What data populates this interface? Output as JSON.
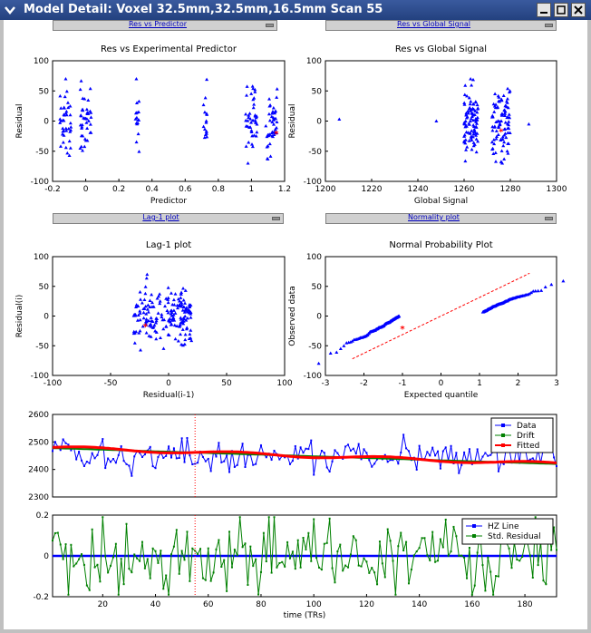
{
  "window": {
    "title": "Model Detail:  Voxel 32.5mm,32.5mm,16.5mm  Scan 55"
  },
  "popups": [
    {
      "id": "a",
      "label": "Res vs Predictor"
    },
    {
      "id": "b",
      "label": "Res vs Global Signal"
    },
    {
      "id": "c",
      "label": "Lag-1 plot"
    },
    {
      "id": "d",
      "label": "Normality plot"
    }
  ],
  "colors": {
    "data": "#0000ff",
    "fitted": "#ff0000",
    "drift": "#008000",
    "zero": "#0000ff",
    "cursor": "#ff0000"
  },
  "chart_data": [
    {
      "type": "scatter",
      "title": "Res vs Experimental Predictor",
      "xlabel": "Predictor",
      "ylabel": "Residual",
      "xlim": [
        -0.2,
        1.2
      ],
      "ylim": [
        -100,
        100
      ],
      "xticks": [
        "-0.2",
        "0",
        "0.2",
        "0.4",
        "0.6",
        "0.8",
        "1",
        "1.2"
      ],
      "yticks": [
        "100",
        "50",
        "0",
        "-50",
        "-100"
      ],
      "clusters": [
        {
          "x": -0.12,
          "spread": 0.035,
          "n": 40,
          "sd": 28
        },
        {
          "x": 0.0,
          "spread": 0.035,
          "n": 42,
          "sd": 30
        },
        {
          "x": 0.31,
          "spread": 0.012,
          "n": 16,
          "sd": 26
        },
        {
          "x": 0.72,
          "spread": 0.012,
          "n": 16,
          "sd": 28
        },
        {
          "x": 1.0,
          "spread": 0.035,
          "n": 44,
          "sd": 28
        },
        {
          "x": 1.12,
          "spread": 0.035,
          "n": 44,
          "sd": 26
        }
      ],
      "highlight": {
        "x": 1.15,
        "y": -22
      }
    },
    {
      "type": "scatter",
      "title": "Res vs Global Signal",
      "xlabel": "Global Signal",
      "ylabel": "Residual",
      "xlim": [
        1200,
        1300
      ],
      "ylim": [
        -100,
        100
      ],
      "xticks": [
        "1200",
        "1220",
        "1240",
        "1260",
        "1280",
        "1300"
      ],
      "yticks": [
        "100",
        "50",
        "0",
        "-50",
        "-100"
      ],
      "clusters": [
        {
          "x": 1263,
          "spread": 3,
          "n": 95,
          "sd": 28
        },
        {
          "x": 1276,
          "spread": 4,
          "n": 95,
          "sd": 28
        }
      ],
      "outliers": [
        {
          "x": 1206,
          "y": 3
        },
        {
          "x": 1248,
          "y": 0
        },
        {
          "x": 1288,
          "y": -5
        }
      ],
      "highlight": {
        "x": 1276,
        "y": -18
      }
    },
    {
      "type": "scatter",
      "title": "Lag-1 plot",
      "xlabel": "Residual(i-1)",
      "ylabel": "Residual(i)",
      "xlim": [
        -100,
        100
      ],
      "ylim": [
        -100,
        100
      ],
      "xticks": [
        "-100",
        "-50",
        "0",
        "50",
        "100"
      ],
      "yticks": [
        "100",
        "50",
        "0",
        "-50",
        "-100"
      ],
      "clusters": [
        {
          "x": -5,
          "spread": 25,
          "n": 190,
          "sd": 24
        }
      ],
      "highlight": {
        "x": -20,
        "y": -18
      }
    },
    {
      "type": "scatter",
      "title": "Normal Probability Plot",
      "xlabel": "Expected quantile",
      "ylabel": "Observed data",
      "xlim": [
        -3,
        3
      ],
      "ylim": [
        -100,
        100
      ],
      "xticks": [
        "-3",
        "-2",
        "-1",
        "0",
        "1",
        "2",
        "3"
      ],
      "yticks": [
        "100",
        "50",
        "0",
        "-50",
        "-100"
      ],
      "qq": {
        "n": 192,
        "slope": 26
      },
      "refline": {
        "x": [
          -2.3,
          2.3
        ],
        "y": [
          -72,
          72
        ]
      },
      "highlight": {
        "x": -1.0,
        "y": -22
      }
    },
    {
      "type": "line",
      "xlim": [
        1,
        192
      ],
      "ylim": [
        2300,
        2600
      ],
      "yticks": [
        "2600",
        "2500",
        "2400",
        "2300"
      ],
      "legend": [
        "Data",
        "Drift",
        "Fitted"
      ],
      "series": [
        {
          "name": "Data",
          "mean": 2450,
          "sd": 28
        },
        {
          "name": "Drift",
          "start": 2478,
          "end": 2420
        },
        {
          "name": "Fitted",
          "start": 2480,
          "end": 2420
        }
      ],
      "cursor_x": 55
    },
    {
      "type": "line",
      "xlim": [
        1,
        192
      ],
      "ylim": [
        -0.2,
        0.2
      ],
      "yticks": [
        "0.2",
        "0",
        "-0.2"
      ],
      "xticks": [
        "20",
        "40",
        "60",
        "80",
        "100",
        "120",
        "140",
        "160",
        "180"
      ],
      "xlabel": "time (TRs)",
      "legend": [
        "HZ Line",
        "Std. Residual"
      ],
      "series": [
        {
          "name": "HZ Line",
          "value": 0
        },
        {
          "name": "Std. Residual",
          "sd": 0.09
        }
      ],
      "cursor_x": 55
    }
  ]
}
